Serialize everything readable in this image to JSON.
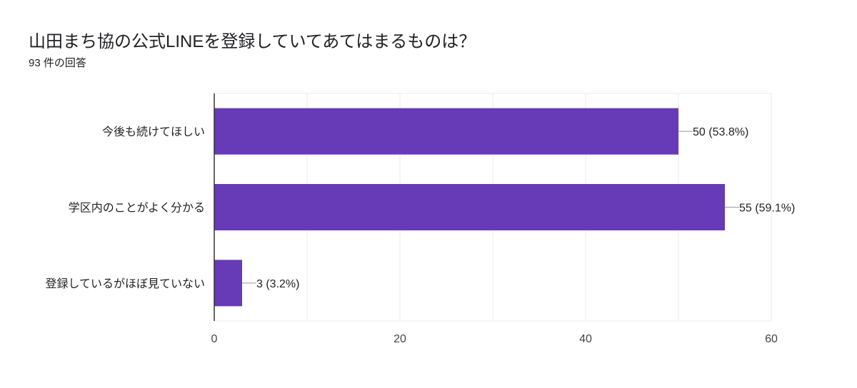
{
  "header": {
    "title": "山田まち協の公式LINEを登録していてあてはまるものは？",
    "responses": "93 件の回答"
  },
  "colors": {
    "bar": "#673ab7",
    "grid": "#ebebeb",
    "axis": "#333333",
    "text": "#222222",
    "tick": "#444444"
  },
  "chart_data": {
    "type": "bar",
    "orientation": "horizontal",
    "categories": [
      "今後も続けてほしい",
      "学区内のことがよく分かる",
      "登録しているがほぼ見ていない"
    ],
    "values": [
      50,
      55,
      3
    ],
    "data_labels": [
      "50 (53.8%)",
      "55 (59.1%)",
      "3 (3.2%)"
    ],
    "xlim": [
      0,
      60
    ],
    "xticks": [
      0,
      20,
      40,
      60
    ],
    "grid": true
  }
}
